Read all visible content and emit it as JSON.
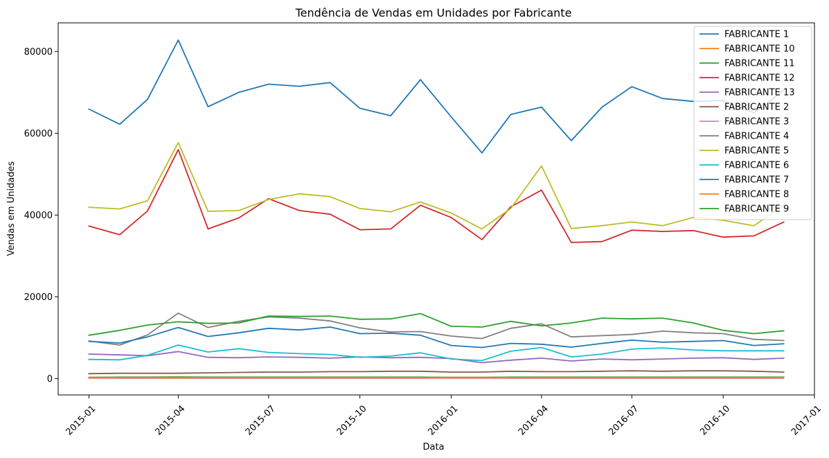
{
  "chart_data": {
    "type": "line",
    "title": "Tendência de Vendas em Unidades por Fabricante",
    "xlabel": "Data",
    "ylabel": "Vendas em Unidades",
    "x": [
      "2015-01",
      "2015-02",
      "2015-03",
      "2015-04",
      "2015-05",
      "2015-06",
      "2015-07",
      "2015-08",
      "2015-09",
      "2015-10",
      "2015-11",
      "2015-12",
      "2016-01",
      "2016-02",
      "2016-03",
      "2016-04",
      "2016-05",
      "2016-06",
      "2016-07",
      "2016-08",
      "2016-09",
      "2016-10",
      "2016-11",
      "2016-12"
    ],
    "x_ticks": [
      "2015-01",
      "2015-04",
      "2015-07",
      "2015-10",
      "2016-01",
      "2016-04",
      "2016-07",
      "2016-10",
      "2017-01"
    ],
    "y_ticks": [
      0,
      20000,
      40000,
      60000,
      80000
    ],
    "ylim": [
      -4000,
      87000
    ],
    "xlim": [
      "2014-12-01",
      "2017-01-01"
    ],
    "grid": false,
    "legend_position": "top-right",
    "series": [
      {
        "name": "FABRICANTE 1",
        "color": "#1f77b4",
        "values": [
          65900,
          62200,
          68300,
          82800,
          66500,
          70000,
          72000,
          71500,
          72400,
          66100,
          64300,
          73100,
          64000,
          55200,
          64600,
          66400,
          58200,
          66400,
          71400,
          68500,
          67800,
          68000,
          65000,
          70500
        ]
      },
      {
        "name": "FABRICANTE 10",
        "color": "#ff7f0e",
        "values": [
          300,
          300,
          300,
          300,
          300,
          300,
          300,
          300,
          300,
          300,
          300,
          300,
          300,
          300,
          300,
          300,
          300,
          300,
          300,
          300,
          300,
          300,
          300,
          300
        ]
      },
      {
        "name": "FABRICANTE 11",
        "color": "#2ca02c",
        "values": [
          300,
          350,
          350,
          400,
          350,
          350,
          350,
          350,
          350,
          350,
          350,
          350,
          300,
          300,
          350,
          350,
          350,
          350,
          350,
          350,
          350,
          350,
          350,
          350
        ]
      },
      {
        "name": "FABRICANTE 12",
        "color": "#d62728",
        "values": [
          37300,
          35200,
          41000,
          56000,
          36600,
          39300,
          44000,
          41100,
          40200,
          36400,
          36600,
          42400,
          39400,
          34000,
          42000,
          46100,
          33300,
          33500,
          36300,
          36000,
          36200,
          34600,
          34900,
          38300
        ]
      },
      {
        "name": "FABRICANTE 13",
        "color": "#9467bd",
        "values": [
          6000,
          5800,
          5600,
          6600,
          5200,
          5100,
          5300,
          5200,
          5000,
          5300,
          5100,
          5200,
          4900,
          3900,
          4500,
          5000,
          4300,
          4800,
          4600,
          4800,
          5000,
          5100,
          4700,
          5000
        ]
      },
      {
        "name": "FABRICANTE 2",
        "color": "#8c564b",
        "values": [
          1200,
          1300,
          1300,
          1300,
          1400,
          1500,
          1600,
          1600,
          1700,
          1700,
          1800,
          1800,
          1600,
          1600,
          1800,
          1700,
          1700,
          1800,
          1900,
          1800,
          1900,
          1900,
          1800,
          1600
        ]
      },
      {
        "name": "FABRICANTE 3",
        "color": "#e377c2",
        "values": [
          100,
          100,
          100,
          100,
          100,
          100,
          100,
          100,
          100,
          100,
          100,
          100,
          100,
          100,
          100,
          100,
          100,
          100,
          100,
          100,
          100,
          100,
          100,
          100
        ]
      },
      {
        "name": "FABRICANTE 4",
        "color": "#7f7f7f",
        "values": [
          9200,
          8200,
          10700,
          16000,
          12500,
          14000,
          15100,
          14800,
          14100,
          12400,
          11400,
          11500,
          10400,
          9800,
          12300,
          13400,
          10200,
          10500,
          10800,
          11600,
          11200,
          11000,
          9600,
          9300
        ]
      },
      {
        "name": "FABRICANTE 5",
        "color": "#bcbd22",
        "values": [
          41900,
          41500,
          43500,
          57700,
          40900,
          41100,
          43800,
          45200,
          44500,
          41600,
          40800,
          43200,
          40500,
          36600,
          41600,
          52000,
          36700,
          37400,
          38300,
          37400,
          39400,
          38700,
          37400,
          42400
        ]
      },
      {
        "name": "FABRICANTE 6",
        "color": "#17becf",
        "values": [
          4700,
          4600,
          5700,
          8200,
          6500,
          7300,
          6400,
          6100,
          5900,
          5200,
          5500,
          6300,
          4800,
          4400,
          6700,
          7600,
          5300,
          6000,
          7200,
          7500,
          7000,
          6800,
          6800,
          6800
        ]
      },
      {
        "name": "FABRICANTE 7",
        "color": "#1f77b4",
        "values": [
          9100,
          8700,
          10200,
          12500,
          10300,
          11200,
          12300,
          11900,
          12600,
          11000,
          11100,
          10600,
          8100,
          7600,
          8600,
          8400,
          7700,
          8600,
          9400,
          8900,
          9100,
          9300,
          8100,
          8500
        ]
      },
      {
        "name": "FABRICANTE 8",
        "color": "#ff7f0e",
        "values": [
          200,
          200,
          200,
          200,
          200,
          200,
          200,
          200,
          200,
          200,
          200,
          200,
          200,
          200,
          200,
          200,
          200,
          200,
          200,
          200,
          200,
          200,
          200,
          200
        ]
      },
      {
        "name": "FABRICANTE 9",
        "color": "#2ca02c",
        "values": [
          10600,
          11800,
          13100,
          13900,
          13500,
          13600,
          15300,
          15200,
          15300,
          14500,
          14600,
          15900,
          12800,
          12600,
          14000,
          12900,
          13600,
          14800,
          14600,
          14800,
          13600,
          11800,
          11000,
          11700
        ]
      }
    ]
  }
}
